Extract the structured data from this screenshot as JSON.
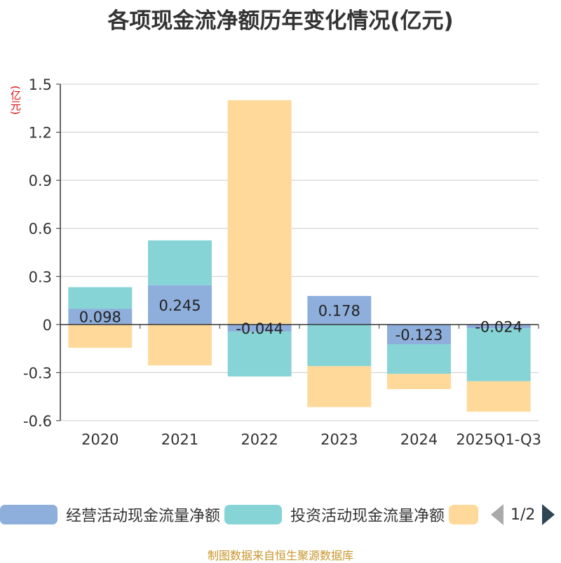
{
  "chart_data": {
    "type": "bar",
    "stacked": true,
    "title": "各项现金流净额历年变化情况(亿元)",
    "ylabel": "(亿元)",
    "categories": [
      "2020",
      "2021",
      "2022",
      "2023",
      "2024",
      "2025Q1-Q3"
    ],
    "ylim": [
      -0.6,
      1.5
    ],
    "yticks": [
      "1.5",
      "1.2",
      "0.9",
      "0.6",
      "0.3",
      "0",
      "-0.3",
      "-0.6"
    ],
    "ytick_values": [
      1.5,
      1.2,
      0.9,
      0.6,
      0.3,
      0,
      -0.3,
      -0.6
    ],
    "series": [
      {
        "name": "经营活动现金流量净额",
        "color": "#8eaedb",
        "values": [
          0.098,
          0.245,
          -0.044,
          0.178,
          -0.123,
          -0.024
        ],
        "labels": [
          "0.098",
          "0.245",
          "-0.044",
          "0.178",
          "-0.123",
          "-0.024"
        ]
      },
      {
        "name": "投资活动现金流量净额",
        "color": "#86d4d6",
        "values": [
          0.135,
          0.28,
          -0.28,
          -0.26,
          -0.185,
          -0.33
        ]
      },
      {
        "name": "",
        "color": "#ffd99a",
        "values": [
          -0.145,
          -0.255,
          1.4,
          -0.255,
          -0.095,
          -0.19
        ]
      }
    ],
    "grid": true,
    "legend_position": "bottom"
  },
  "legend": {
    "items": [
      "经营活动现金流量净额",
      "投资活动现金流量净额",
      ""
    ],
    "page": "1/2"
  },
  "source": "制图数据来自恒生聚源数据库"
}
